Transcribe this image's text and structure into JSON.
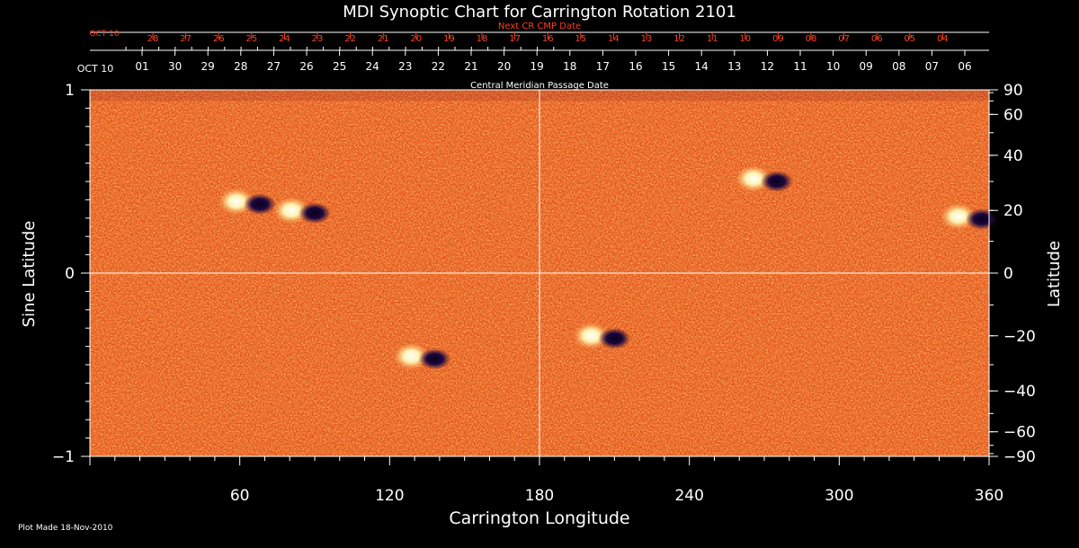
{
  "chart_data": {
    "type": "heatmap",
    "title": "MDI Synoptic Chart for Carrington Rotation 2101",
    "xlabel": "Carrington Longitude",
    "ylabel_left": "Sine Latitude",
    "ylabel_right": "Latitude",
    "xlim": [
      0,
      360
    ],
    "ylim_sine": [
      -1,
      1
    ],
    "x_ticks": [
      60,
      120,
      180,
      240,
      300,
      360
    ],
    "y_ticks_left": [
      {
        "value": 1,
        "label": "1"
      },
      {
        "value": 0,
        "label": "0"
      },
      {
        "value": -1,
        "label": "−1"
      }
    ],
    "y_ticks_right": [
      90,
      60,
      40,
      20,
      0,
      -20,
      -40,
      -60,
      -90
    ],
    "y_ticks_right_labels": [
      "90",
      "60",
      "40",
      "20",
      "0",
      "−20",
      "−40",
      "−60",
      "−90"
    ],
    "cmp_axis_label": "Central Meridian Passage Date",
    "cmp_dates": [
      "OCT 10",
      "01",
      "30",
      "29",
      "28",
      "27",
      "26",
      "25",
      "24",
      "23",
      "22",
      "21",
      "20",
      "19",
      "18",
      "17",
      "16",
      "15",
      "14",
      "13",
      "12",
      "11",
      "10",
      "09",
      "08",
      "07",
      "06"
    ],
    "next_cr_label": "Next CR CMP Date",
    "next_cr_dates": [
      "OCT 10",
      "28",
      "27",
      "26",
      "25",
      "24",
      "23",
      "22",
      "21",
      "20",
      "19",
      "18",
      "17",
      "16",
      "15",
      "14",
      "13",
      "12",
      "11",
      "10",
      "09",
      "08",
      "07",
      "06",
      "05",
      "04"
    ],
    "gridlines": {
      "longitude": 180,
      "sine_latitude": 0
    },
    "active_regions": [
      {
        "lon": 63,
        "lat": 23,
        "polarity_lead": "negative"
      },
      {
        "lon": 85,
        "lat": 20,
        "polarity_lead": "negative"
      },
      {
        "lon": 133,
        "lat": -27,
        "polarity_lead": "negative"
      },
      {
        "lon": 205,
        "lat": -20,
        "polarity_lead": "negative"
      },
      {
        "lon": 270,
        "lat": 31,
        "polarity_lead": "negative"
      },
      {
        "lon": 352,
        "lat": 18,
        "polarity_lead": "negative"
      }
    ]
  },
  "footer": {
    "plot_made": "Plot Made 18-Nov-2010"
  },
  "colors": {
    "background": "#000000",
    "map_base": "#e8561a",
    "accent_red": "#ff4020",
    "grid": "#ffffff"
  }
}
